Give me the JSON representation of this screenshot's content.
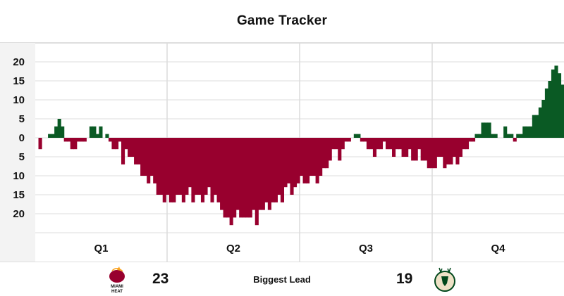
{
  "header": {
    "title": "Game Tracker"
  },
  "chart_data": {
    "type": "bar",
    "title": "Game Tracker",
    "ylim": [
      -25,
      25
    ],
    "y_ticks": [
      20,
      15,
      10,
      5,
      0,
      5,
      10,
      15,
      20
    ],
    "quarters": [
      "Q1",
      "Q2",
      "Q3",
      "Q4"
    ],
    "grid": true,
    "series": [
      {
        "team": "Milwaukee Bucks",
        "color": "#0a5a24",
        "direction": "positive"
      },
      {
        "team": "Miami Heat",
        "color": "#98002e",
        "direction": "negative"
      }
    ],
    "values": [
      0,
      -3,
      0,
      0,
      1,
      1,
      3,
      5,
      3,
      -1,
      -1,
      -3,
      -3,
      -1,
      -1,
      -1,
      0,
      3,
      3,
      1,
      3,
      0,
      1,
      -1,
      -3,
      -3,
      -1,
      -7,
      -3,
      -5,
      -5,
      -7,
      -7,
      -10,
      -10,
      -12,
      -10,
      -12,
      -15,
      -15,
      -17,
      -15,
      -17,
      -17,
      -15,
      -15,
      -17,
      -15,
      -13,
      -17,
      -15,
      -15,
      -17,
      -15,
      -13,
      -17,
      -15,
      -17,
      -19,
      -21,
      -21,
      -23,
      -21,
      -19,
      -21,
      -21,
      -21,
      -21,
      -19,
      -23,
      -19,
      -19,
      -17,
      -19,
      -17,
      -17,
      -15,
      -17,
      -13,
      -12,
      -15,
      -13,
      -12,
      -10,
      -12,
      -12,
      -10,
      -10,
      -12,
      -10,
      -8,
      -8,
      -6,
      -3,
      -3,
      -6,
      -3,
      -1,
      -1,
      0,
      1,
      1,
      -1,
      -1,
      -3,
      -3,
      -5,
      -3,
      -3,
      -1,
      -3,
      -3,
      -5,
      -3,
      -3,
      -5,
      -5,
      -3,
      -6,
      -6,
      -3,
      -6,
      -6,
      -8,
      -8,
      -8,
      -5,
      -5,
      -8,
      -7,
      -7,
      -5,
      -7,
      -5,
      -3,
      -3,
      -1,
      -1,
      1,
      1,
      4,
      4,
      4,
      1,
      1,
      0,
      0,
      3,
      1,
      1,
      -1,
      1,
      1,
      3,
      3,
      3,
      6,
      6,
      8,
      10,
      13,
      15,
      18,
      19,
      17,
      14
    ],
    "summary": {
      "label": "Biggest Lead",
      "heat_biggest_lead": "23",
      "bucks_biggest_lead": "19"
    }
  },
  "footer": {
    "left_logo": "miami-heat-logo",
    "right_logo": "milwaukee-bucks-logo",
    "left_score": "23",
    "right_score": "19",
    "label": "Biggest Lead"
  }
}
